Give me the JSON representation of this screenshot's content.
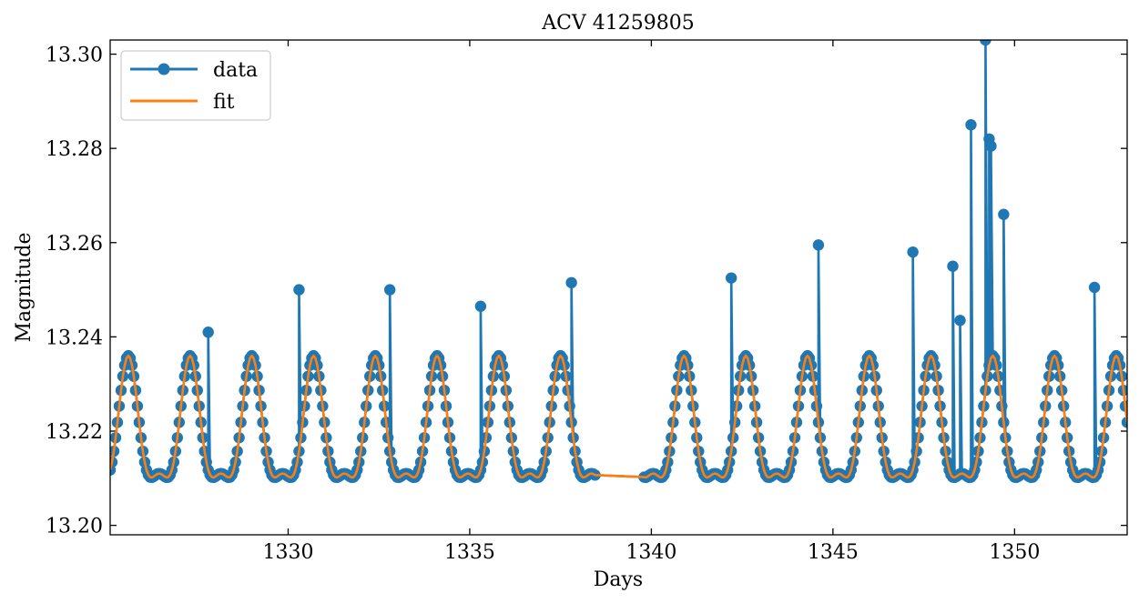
{
  "chart_data": {
    "type": "line",
    "title": "ACV 41259805",
    "xlabel": "Days",
    "ylabel": "Magnitude",
    "xlim": [
      1325.1,
      1353.1
    ],
    "ylim": [
      13.198,
      13.303
    ],
    "x_ticks": [
      1330,
      1335,
      1340,
      1345,
      1350
    ],
    "x_tick_labels": [
      "1330",
      "1335",
      "1340",
      "1345",
      "1350"
    ],
    "y_ticks": [
      13.2,
      13.22,
      13.24,
      13.26,
      13.28,
      13.3
    ],
    "y_tick_labels": [
      "13.20",
      "13.22",
      "13.24",
      "13.26",
      "13.28",
      "13.30"
    ],
    "grid": false,
    "legend": {
      "position": "top-left",
      "entries": [
        "data",
        "fit"
      ]
    },
    "series": [
      {
        "name": "data",
        "style": "line+markers",
        "color": "#1f77b4",
        "model": {
          "x_start": 1325.1,
          "x_end": 1353.1,
          "step": 0.05,
          "baseline": 13.219,
          "components": [
            {
              "amplitude": 0.0125,
              "period": 1.7,
              "phase_x0": 1327.3
            },
            {
              "amplitude": 0.0045,
              "period": 0.85,
              "phase_x0": 1327.3
            }
          ],
          "gap": [
            1338.45,
            1339.75
          ]
        },
        "spikes": [
          {
            "x": 1327.8,
            "y": 13.241
          },
          {
            "x": 1330.3,
            "y": 13.25
          },
          {
            "x": 1332.8,
            "y": 13.25
          },
          {
            "x": 1335.3,
            "y": 13.2465
          },
          {
            "x": 1337.8,
            "y": 13.2515
          },
          {
            "x": 1342.2,
            "y": 13.2525
          },
          {
            "x": 1344.6,
            "y": 13.2595
          },
          {
            "x": 1347.2,
            "y": 13.258
          },
          {
            "x": 1348.3,
            "y": 13.255
          },
          {
            "x": 1348.5,
            "y": 13.2435
          },
          {
            "x": 1348.8,
            "y": 13.285
          },
          {
            "x": 1349.2,
            "y": 13.303
          },
          {
            "x": 1349.3,
            "y": 13.282
          },
          {
            "x": 1349.35,
            "y": 13.2805
          },
          {
            "x": 1349.7,
            "y": 13.266
          },
          {
            "x": 1352.2,
            "y": 13.2505
          }
        ]
      },
      {
        "name": "fit",
        "style": "line",
        "color": "#ff7f0e",
        "model": {
          "x_start": 1325.1,
          "x_end": 1353.1,
          "step": 0.05,
          "baseline": 13.219,
          "components": [
            {
              "amplitude": 0.0125,
              "period": 1.7,
              "phase_x0": 1327.3
            },
            {
              "amplitude": 0.0045,
              "period": 0.85,
              "phase_x0": 1327.3
            }
          ],
          "gap": [
            1338.45,
            1339.75
          ]
        }
      }
    ]
  }
}
